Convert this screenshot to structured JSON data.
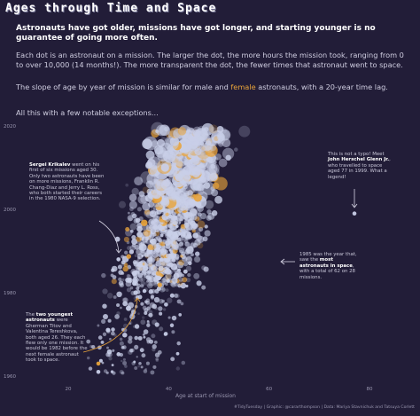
{
  "title": "Ages through Time and Space",
  "subtitle": "Astronauts have got older, missions have got longer, and starting younger is no guarantee of going more often.",
  "paragraphs": {
    "p1": "Each dot is an astronaut on a mission. The larger the dot, the more hours the mission took, ranging from 0 to over 10,000 (14 months!). The more transparent the dot, the fewer times that astronaut went to space.",
    "p2_pre": "The slope of age by year of mission is similar for male and ",
    "p2_female": "female",
    "p2_post": " astronauts, with a 20-year time lag.",
    "p3": "All this with a few notable exceptions..."
  },
  "annotations": {
    "krikalev": {
      "name": "Sergei Krikalev",
      "text": " went on his first of six missions aged 30. Only two astronauts have been on more missions, Franklin R. Chang-Diaz and Jerry L. Ross, who both started their careers in the 1980 NASA-9 selection."
    },
    "glenn": {
      "pre": "This is not a typo! Meet ",
      "name": "John Herschel Glenn Jr.",
      "post": ", who travelled to space aged 77 in 1999. What a legend!"
    },
    "year1985": {
      "pre": "1985 was the year that, saw the ",
      "bold": "most astronauts in space",
      "post": ", with a total of 62 on 28 missions."
    },
    "youngest": {
      "pre": "The ",
      "bold": "two youngest astronauts",
      "post": " were Gherman Titov and Valentina Tereshkova, both aged 26. They each flew only one mission. It would be 1982 before the next female astronaut took to space."
    }
  },
  "footer": "#TidyTuesday | Graphic: @cararthompson | Data: Mariya Stavnichuk and Tatsuya Corlett",
  "colors": {
    "background": "#221d38",
    "male": "#c9cfe8",
    "female": "#e8a33a",
    "text": "#e8e6f0"
  },
  "chart_data": {
    "type": "scatter",
    "xlabel": "Age at start of mission",
    "ylabel": "",
    "xlim": [
      15,
      85
    ],
    "ylim": [
      1958,
      2022
    ],
    "x_ticks": [
      20,
      40,
      60,
      80
    ],
    "y_ticks": [
      1960,
      1980,
      2000,
      2020
    ],
    "highlights": [
      {
        "age": 30,
        "year": 1988,
        "note": "krikalev"
      },
      {
        "age": 77,
        "year": 1999,
        "note": "glenn"
      },
      {
        "age": 26,
        "year": 1961,
        "note": "youngest"
      },
      {
        "age": 26,
        "year": 1963,
        "note": "youngest"
      }
    ],
    "trend": {
      "year_start": 1960,
      "year_end": 2020,
      "age_start": 31,
      "age_end": 46
    }
  }
}
